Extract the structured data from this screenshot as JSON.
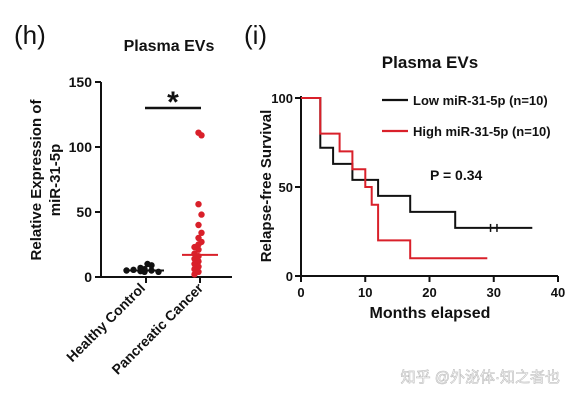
{
  "panel_h": {
    "label": "(h)",
    "title": "Plasma EVs",
    "significance": "*",
    "ylabel_line1": "Relative Expression of",
    "ylabel_line2": "miR-31-5p"
  },
  "panel_i": {
    "label": "(i)",
    "title": "Plasma EVs",
    "ylabel": "Relapse-free Survival",
    "xlabel": "Months elapsed",
    "legend_low": "Low miR-31-5p (n=10)",
    "legend_high": "High miR-31-5p (n=10)",
    "pvalue": "P = 0.34"
  },
  "watermark": "知乎 @外泌体·知之者也",
  "chart_data": [
    {
      "type": "scatter",
      "title": "Plasma EVs",
      "ylabel": "Relative Expression of miR-31-5p",
      "ylim": [
        0,
        150
      ],
      "yticks": [
        0,
        50,
        100,
        150
      ],
      "categories": [
        "Healthy Control",
        "Pancreatic Cancer"
      ],
      "series": [
        {
          "category": "Healthy Control",
          "color": "#111111",
          "values": [
            4,
            4.5,
            5,
            5.5,
            4,
            5,
            6,
            7,
            9,
            10
          ],
          "median": 5
        },
        {
          "category": "Pancreatic Cancer",
          "color": "#d9202a",
          "values": [
            111,
            109,
            56,
            48,
            40,
            34,
            30,
            27,
            25,
            23,
            21,
            18,
            16,
            14,
            12,
            10,
            8,
            6,
            4,
            2
          ],
          "median": 17
        }
      ],
      "annotation": "*"
    },
    {
      "type": "line",
      "title": "Plasma EVs",
      "xlabel": "Months elapsed",
      "ylabel": "Relapse-free Survival",
      "xlim": [
        0,
        40
      ],
      "ylim": [
        0,
        100
      ],
      "xticks": [
        0,
        10,
        20,
        30,
        40
      ],
      "yticks": [
        0,
        50,
        100
      ],
      "legend": "top-right",
      "series": [
        {
          "name": "Low miR-31-5p (n=10)",
          "color": "#111111",
          "steps": [
            [
              0,
              100
            ],
            [
              3,
              100
            ],
            [
              3,
              72
            ],
            [
              5,
              72
            ],
            [
              5,
              63
            ],
            [
              8,
              63
            ],
            [
              8,
              54
            ],
            [
              12,
              54
            ],
            [
              12,
              45
            ],
            [
              17,
              45
            ],
            [
              17,
              36
            ],
            [
              24,
              36
            ],
            [
              24,
              27
            ],
            [
              36,
              27
            ]
          ],
          "censored": [
            [
              29.5,
              27
            ],
            [
              30.5,
              27
            ]
          ]
        },
        {
          "name": "High miR-31-5p (n=10)",
          "color": "#d9202a",
          "steps": [
            [
              0,
              100
            ],
            [
              3,
              100
            ],
            [
              3,
              80
            ],
            [
              6,
              80
            ],
            [
              6,
              70
            ],
            [
              8,
              70
            ],
            [
              8,
              60
            ],
            [
              10,
              60
            ],
            [
              10,
              50
            ],
            [
              11,
              50
            ],
            [
              11,
              40
            ],
            [
              12,
              40
            ],
            [
              12,
              20
            ],
            [
              17,
              20
            ],
            [
              17,
              10
            ],
            [
              29,
              10
            ]
          ],
          "censored": []
        }
      ],
      "annotation": "P = 0.34"
    }
  ]
}
